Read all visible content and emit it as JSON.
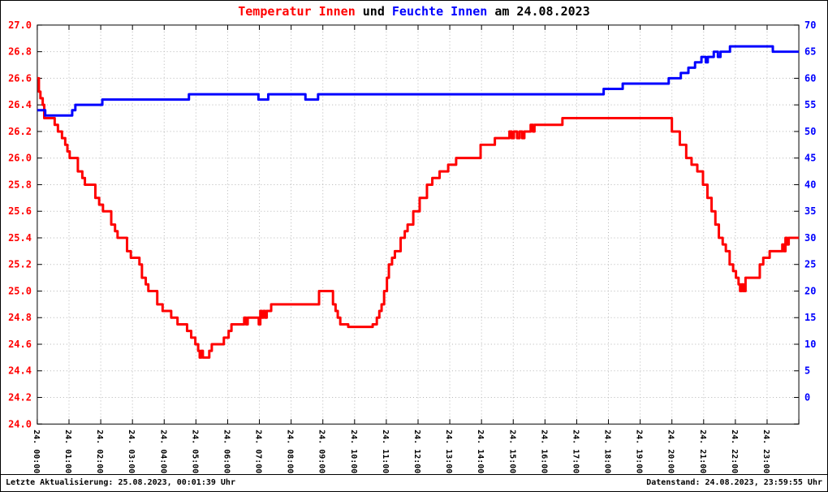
{
  "title": {
    "temperature": "Temperatur Innen",
    "and": " und ",
    "humidity": "Feuchte Innen",
    "date": " am 24.08.2023"
  },
  "footer": {
    "left": "Letzte Aktualisierung: 25.08.2023, 00:01:39 Uhr",
    "right": "Datenstand: 24.08.2023, 23:59:55 Uhr"
  },
  "colors": {
    "temperature": "#ff0000",
    "humidity": "#0000ff",
    "grid": "#b4b4b4",
    "border": "#000000",
    "background": "#ffffff"
  },
  "chart_data": {
    "type": "line",
    "style": "step",
    "title": "Temperatur Innen und Feuchte Innen am 24.08.2023",
    "grid": true,
    "legend_position": "none",
    "x_axis": {
      "range_hours": [
        0,
        24
      ],
      "ticks": [
        "24. 00:00",
        "24. 01:00",
        "24. 02:00",
        "24. 03:00",
        "24. 04:00",
        "24. 05:00",
        "24. 06:00",
        "24. 07:00",
        "24. 08:00",
        "24. 09:00",
        "24. 10:00",
        "24. 11:00",
        "24. 12:00",
        "24. 13:00",
        "24. 14:00",
        "24. 15:00",
        "24. 16:00",
        "24. 17:00",
        "24. 18:00",
        "24. 19:00",
        "24. 20:00",
        "24. 21:00",
        "24. 22:00",
        "24. 23:00"
      ]
    },
    "y_left": {
      "color": "#ff0000",
      "range": [
        24.0,
        27.0
      ],
      "ticks": [
        "27.0",
        "26.8",
        "26.6",
        "26.4",
        "26.2",
        "26.0",
        "25.8",
        "25.6",
        "25.4",
        "25.2",
        "25.0",
        "24.8",
        "24.6",
        "24.4",
        "24.2",
        "24.0"
      ]
    },
    "y_right": {
      "color": "#0000ff",
      "range": [
        -5,
        70
      ],
      "ticks": [
        "70",
        "65",
        "60",
        "55",
        "50",
        "45",
        "40",
        "35",
        "30",
        "25",
        "20",
        "15",
        "10",
        "5",
        "0"
      ]
    },
    "series": [
      {
        "id": "temperature",
        "name": "Temperatur Innen",
        "axis": "left",
        "color": "#ff0000",
        "points": [
          [
            0,
            26.6
          ],
          [
            0.05,
            26.5
          ],
          [
            0.1,
            26.45
          ],
          [
            0.17,
            26.4
          ],
          [
            0.22,
            26.3
          ],
          [
            0.55,
            26.25
          ],
          [
            0.65,
            26.2
          ],
          [
            0.78,
            26.15
          ],
          [
            0.88,
            26.1
          ],
          [
            0.95,
            26.05
          ],
          [
            1.02,
            26.0
          ],
          [
            1.28,
            25.9
          ],
          [
            1.42,
            25.85
          ],
          [
            1.5,
            25.8
          ],
          [
            1.83,
            25.7
          ],
          [
            1.95,
            25.65
          ],
          [
            2.07,
            25.6
          ],
          [
            2.33,
            25.5
          ],
          [
            2.45,
            25.45
          ],
          [
            2.53,
            25.4
          ],
          [
            2.83,
            25.3
          ],
          [
            2.95,
            25.25
          ],
          [
            3.22,
            25.2
          ],
          [
            3.3,
            25.1
          ],
          [
            3.42,
            25.05
          ],
          [
            3.5,
            25.0
          ],
          [
            3.78,
            24.9
          ],
          [
            3.95,
            24.85
          ],
          [
            4.22,
            24.8
          ],
          [
            4.42,
            24.75
          ],
          [
            4.72,
            24.7
          ],
          [
            4.85,
            24.65
          ],
          [
            4.98,
            24.6
          ],
          [
            5.07,
            24.55
          ],
          [
            5.12,
            24.5
          ],
          [
            5.17,
            24.55
          ],
          [
            5.22,
            24.5
          ],
          [
            5.42,
            24.55
          ],
          [
            5.5,
            24.6
          ],
          [
            5.88,
            24.65
          ],
          [
            6.03,
            24.7
          ],
          [
            6.12,
            24.75
          ],
          [
            6.52,
            24.8
          ],
          [
            6.58,
            24.75
          ],
          [
            6.63,
            24.8
          ],
          [
            6.98,
            24.75
          ],
          [
            7.03,
            24.85
          ],
          [
            7.08,
            24.8
          ],
          [
            7.13,
            24.85
          ],
          [
            7.18,
            24.8
          ],
          [
            7.23,
            24.85
          ],
          [
            7.37,
            24.9
          ],
          [
            8.88,
            25.0
          ],
          [
            9.32,
            24.9
          ],
          [
            9.4,
            24.85
          ],
          [
            9.47,
            24.8
          ],
          [
            9.55,
            24.75
          ],
          [
            9.8,
            24.73
          ],
          [
            10.57,
            24.75
          ],
          [
            10.7,
            24.8
          ],
          [
            10.78,
            24.85
          ],
          [
            10.85,
            24.9
          ],
          [
            10.93,
            25.0
          ],
          [
            11.02,
            25.1
          ],
          [
            11.08,
            25.2
          ],
          [
            11.18,
            25.25
          ],
          [
            11.27,
            25.3
          ],
          [
            11.45,
            25.4
          ],
          [
            11.58,
            25.45
          ],
          [
            11.67,
            25.5
          ],
          [
            11.85,
            25.6
          ],
          [
            12.05,
            25.7
          ],
          [
            12.28,
            25.8
          ],
          [
            12.45,
            25.85
          ],
          [
            12.68,
            25.9
          ],
          [
            12.95,
            25.95
          ],
          [
            13.2,
            26.0
          ],
          [
            13.97,
            26.1
          ],
          [
            14.42,
            26.15
          ],
          [
            14.88,
            26.2
          ],
          [
            14.95,
            26.15
          ],
          [
            15.02,
            26.2
          ],
          [
            15.12,
            26.15
          ],
          [
            15.2,
            26.2
          ],
          [
            15.28,
            26.15
          ],
          [
            15.35,
            26.2
          ],
          [
            15.55,
            26.25
          ],
          [
            15.62,
            26.2
          ],
          [
            15.67,
            26.25
          ],
          [
            16.55,
            26.3
          ],
          [
            20.0,
            26.2
          ],
          [
            20.25,
            26.1
          ],
          [
            20.45,
            26.0
          ],
          [
            20.62,
            25.95
          ],
          [
            20.8,
            25.9
          ],
          [
            20.98,
            25.8
          ],
          [
            21.12,
            25.7
          ],
          [
            21.25,
            25.6
          ],
          [
            21.37,
            25.5
          ],
          [
            21.48,
            25.4
          ],
          [
            21.6,
            25.35
          ],
          [
            21.7,
            25.3
          ],
          [
            21.82,
            25.2
          ],
          [
            21.93,
            25.15
          ],
          [
            22.02,
            25.1
          ],
          [
            22.1,
            25.05
          ],
          [
            22.15,
            25.0
          ],
          [
            22.2,
            25.05
          ],
          [
            22.25,
            25.0
          ],
          [
            22.32,
            25.1
          ],
          [
            22.77,
            25.2
          ],
          [
            22.88,
            25.25
          ],
          [
            23.08,
            25.3
          ],
          [
            23.48,
            25.35
          ],
          [
            23.53,
            25.3
          ],
          [
            23.58,
            25.4
          ],
          [
            23.63,
            25.35
          ],
          [
            23.68,
            25.4
          ],
          [
            24.0,
            25.4
          ]
        ]
      },
      {
        "id": "humidity",
        "name": "Feuchte Innen",
        "axis": "right",
        "color": "#0000ff",
        "points": [
          [
            0,
            54
          ],
          [
            0.25,
            53
          ],
          [
            1.1,
            54
          ],
          [
            1.2,
            55
          ],
          [
            2.05,
            56
          ],
          [
            4.78,
            57
          ],
          [
            6.97,
            56
          ],
          [
            7.28,
            57
          ],
          [
            8.45,
            56
          ],
          [
            8.85,
            57
          ],
          [
            17.85,
            58
          ],
          [
            18.45,
            59
          ],
          [
            19.9,
            60
          ],
          [
            20.28,
            61
          ],
          [
            20.52,
            62
          ],
          [
            20.73,
            63
          ],
          [
            20.93,
            64
          ],
          [
            21.07,
            63
          ],
          [
            21.13,
            64
          ],
          [
            21.32,
            65
          ],
          [
            21.45,
            64
          ],
          [
            21.53,
            65
          ],
          [
            21.83,
            66
          ],
          [
            23.18,
            65
          ],
          [
            24.0,
            65
          ]
        ]
      }
    ]
  }
}
